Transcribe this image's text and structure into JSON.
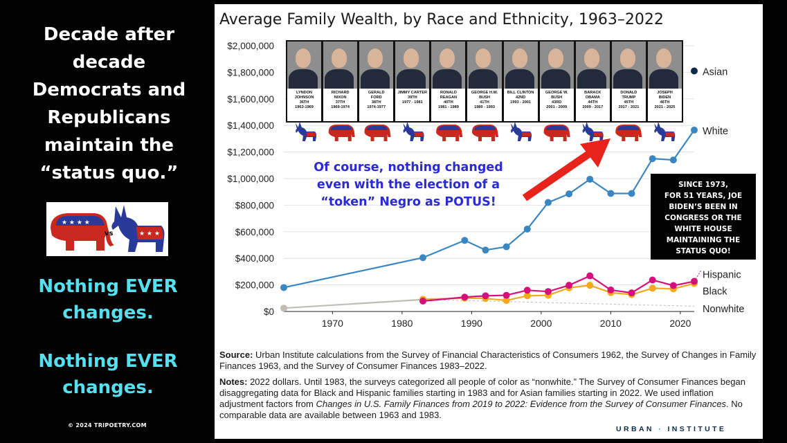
{
  "left_panel": {
    "headline_lines": [
      "Decade after",
      "decade",
      "Democrats and",
      "Republicans",
      "maintain the",
      "“status quo.”"
    ],
    "vs_label": "vs",
    "nothing_changes_1": [
      "Nothing EVER",
      "changes."
    ],
    "nothing_changes_2": [
      "Nothing EVER",
      "changes."
    ],
    "copyright": "© 2024 TRIPOETRY.COM"
  },
  "overlay": {
    "caption_lines": [
      "Of course, nothing changed",
      "even with the election of a",
      "“token” Negro as POTUS!"
    ],
    "biden_box_lines": [
      "SINCE 1973,",
      "FOR 51 YEARS, JOE",
      "BIDEN’S BEEN IN",
      "CONGRESS OR THE",
      "WHITE HOUSE",
      "MAINTAINING THE",
      "STATUS QUO!"
    ]
  },
  "presidents": [
    {
      "name1": "LYNDON",
      "name2": "JOHNSON",
      "num": "36TH",
      "years": "1963-1969",
      "party": "D"
    },
    {
      "name1": "RICHARD",
      "name2": "NIXON",
      "num": "37TH",
      "years": "1969-1974",
      "party": "R"
    },
    {
      "name1": "GERALD",
      "name2": "FORD",
      "num": "38TH",
      "years": "1974-1977",
      "party": "R"
    },
    {
      "name1": "JIMMY CARTER",
      "name2": "",
      "num": "39TH",
      "years": "1977 - 1981",
      "party": "D"
    },
    {
      "name1": "RONALD",
      "name2": "REAGAN",
      "num": "40TH",
      "years": "1981 - 1989",
      "party": "R"
    },
    {
      "name1": "GEORGE H.W.",
      "name2": "BUSH",
      "num": "41TH",
      "years": "1989 - 1993",
      "party": "R"
    },
    {
      "name1": "BILL CLINTON",
      "name2": "",
      "num": "42ND",
      "years": "1993 - 2001",
      "party": "D"
    },
    {
      "name1": "GEORGE W.",
      "name2": "BUSH",
      "num": "43RD",
      "years": "2001 - 2009",
      "party": "R"
    },
    {
      "name1": "BARACK",
      "name2": "OBAMA",
      "num": "44TH",
      "years": "2009 - 2017",
      "party": "D"
    },
    {
      "name1": "DONALD",
      "name2": "TRUMP",
      "num": "45TH",
      "years": "2017 - 2021",
      "party": "R"
    },
    {
      "name1": "JOSEPH",
      "name2": "BIDEN",
      "num": "46TH",
      "years": "2021 - 2025",
      "party": "D"
    }
  ],
  "chart_data": {
    "type": "line",
    "title": "Average Family Wealth, by Race and Ethnicity, 1963–2022",
    "x_ticks": [
      1970,
      1980,
      1990,
      2000,
      2010,
      2020
    ],
    "y_ticks": [
      0,
      200000,
      400000,
      600000,
      800000,
      1000000,
      1200000,
      1400000,
      1600000,
      1800000,
      2000000
    ],
    "y_tick_labels": [
      "$0",
      "$200,000",
      "$400,000",
      "$600,000",
      "$800,000",
      "$1,000,000",
      "$1,200,000",
      "$1,400,000",
      "$1,600,000",
      "$1,800,000",
      "$2,000,000"
    ],
    "xlim": [
      1963,
      2022
    ],
    "ylim": [
      0,
      2000000
    ],
    "grid": true,
    "series": [
      {
        "name": "White",
        "color": "#3a86c2",
        "x": [
          1963,
          1983,
          1989,
          1992,
          1995,
          1998,
          2001,
          2004,
          2007,
          2010,
          2013,
          2016,
          2019,
          2022
        ],
        "values": [
          180000,
          405000,
          535000,
          462000,
          487000,
          620000,
          820000,
          885000,
          995000,
          888000,
          888000,
          1150000,
          1140000,
          1365000
        ]
      },
      {
        "name": "Hispanic",
        "color": "#d6107a",
        "x": [
          1983,
          1989,
          1992,
          1995,
          1998,
          2001,
          2004,
          2007,
          2010,
          2013,
          2016,
          2019,
          2022
        ],
        "values": [
          78000,
          108000,
          118000,
          122000,
          160000,
          150000,
          197000,
          268000,
          162000,
          140000,
          237000,
          195000,
          227000
        ]
      },
      {
        "name": "Black",
        "color": "#f2a91c",
        "x": [
          1983,
          1989,
          1992,
          1995,
          1998,
          2001,
          2004,
          2007,
          2010,
          2013,
          2016,
          2019,
          2022
        ],
        "values": [
          92000,
          100000,
          98000,
          83000,
          118000,
          122000,
          178000,
          197000,
          142000,
          127000,
          175000,
          170000,
          211000
        ]
      },
      {
        "name": "Nonwhite",
        "color": "#bfbdb6",
        "x": [
          1963,
          1983
        ],
        "values": [
          25000,
          90000
        ]
      },
      {
        "name": "Asian",
        "color": "#0e2a47",
        "x": [
          2022
        ],
        "values": [
          1810000
        ]
      }
    ]
  },
  "source": {
    "label": "Source:",
    "text": "Urban Institute calculations from the Survey of Financial Characteristics of Consumers 1962, the Survey of Changes in Family Finances 1963, and the Survey of Consumer Finances 1983–2022."
  },
  "notes": {
    "label": "Notes:",
    "text_a": "2022 dollars. Until 1983, the surveys categorized all people of color as “nonwhite.” The Survey of Consumer Finances began disaggregating data for Black and Hispanic families starting in 1983 and for Asian families starting in 2022. We used inflation adjustment factors from ",
    "text_italic": "Changes in U.S. Family Finances from 2019 to 2022: Evidence from the Survey of Consumer Finances",
    "text_b": ". No comparable data are available between 1963 and 1983."
  },
  "branding": {
    "urban": "URBAN",
    "dot": "·",
    "institute": "INSTITUTE"
  },
  "colors": {
    "democrat": "#2a3a9a",
    "republican": "#c8281e",
    "arrow": "#e8231c"
  }
}
